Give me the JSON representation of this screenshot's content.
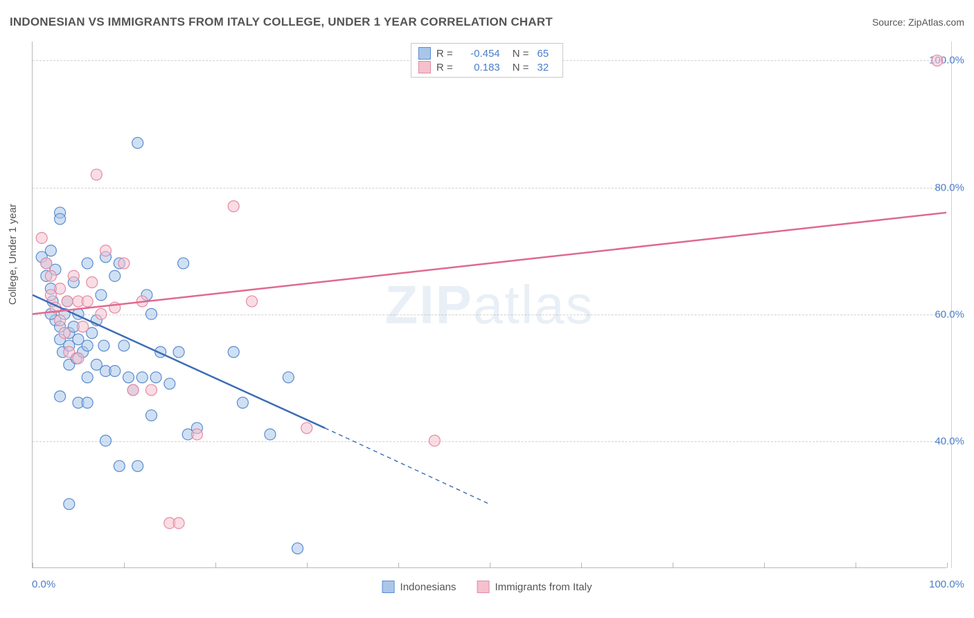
{
  "header": {
    "title": "INDONESIAN VS IMMIGRANTS FROM ITALY COLLEGE, UNDER 1 YEAR CORRELATION CHART",
    "source_label": "Source:",
    "source_value": "ZipAtlas.com"
  },
  "watermark_text": "ZIPatlas",
  "chart": {
    "type": "scatter",
    "yaxis_title": "College, Under 1 year",
    "xlim": [
      0,
      100
    ],
    "ylim": [
      20,
      103
    ],
    "xtick_positions": [
      0,
      10,
      20,
      30,
      40,
      50,
      60,
      70,
      80,
      90,
      100
    ],
    "xtick_labels": {
      "min": "0.0%",
      "max": "100.0%"
    },
    "ytick_positions": [
      40,
      60,
      80,
      100
    ],
    "ytick_labels": [
      "40.0%",
      "60.0%",
      "80.0%",
      "100.0%"
    ],
    "background_color": "#ffffff",
    "grid_color": "#d0d0d0",
    "axis_color": "#b8b8b8",
    "label_color": "#4a7ec9",
    "marker_radius": 8,
    "marker_opacity": 0.55,
    "series": [
      {
        "name": "Indonesians",
        "color_fill": "#a9c6ea",
        "color_stroke": "#5a8bce",
        "r": -0.454,
        "n": 65,
        "trend": {
          "x1": 0,
          "y1": 63,
          "x2_solid": 32,
          "y2_solid": 42,
          "x2_dash": 50,
          "y2_dash": 30,
          "color": "#3d6db5",
          "width": 2.5
        },
        "points": [
          [
            1,
            69
          ],
          [
            1.5,
            66
          ],
          [
            1.5,
            68
          ],
          [
            2,
            64
          ],
          [
            2,
            70
          ],
          [
            2.2,
            62
          ],
          [
            2.5,
            59
          ],
          [
            2.5,
            67
          ],
          [
            3,
            76
          ],
          [
            3,
            75
          ],
          [
            3,
            56
          ],
          [
            3,
            58
          ],
          [
            3.3,
            54
          ],
          [
            3.5,
            60
          ],
          [
            3.8,
            62
          ],
          [
            4,
            57
          ],
          [
            4,
            55
          ],
          [
            4,
            52
          ],
          [
            4.5,
            65
          ],
          [
            4.5,
            58
          ],
          [
            4.8,
            53
          ],
          [
            5,
            56
          ],
          [
            5,
            60
          ],
          [
            5,
            46
          ],
          [
            5.5,
            54
          ],
          [
            6,
            55
          ],
          [
            6,
            50
          ],
          [
            6,
            68
          ],
          [
            6.5,
            57
          ],
          [
            7,
            52
          ],
          [
            7,
            59
          ],
          [
            7.5,
            63
          ],
          [
            7.8,
            55
          ],
          [
            8,
            51
          ],
          [
            8,
            40
          ],
          [
            8,
            69
          ],
          [
            9,
            66
          ],
          [
            9,
            51
          ],
          [
            9.5,
            36
          ],
          [
            9.5,
            68
          ],
          [
            10,
            55
          ],
          [
            10.5,
            50
          ],
          [
            11,
            48
          ],
          [
            11.5,
            87
          ],
          [
            11.5,
            36
          ],
          [
            12,
            50
          ],
          [
            12.5,
            63
          ],
          [
            13,
            60
          ],
          [
            13,
            44
          ],
          [
            13.5,
            50
          ],
          [
            14,
            54
          ],
          [
            15,
            49
          ],
          [
            16,
            54
          ],
          [
            16.5,
            68
          ],
          [
            17,
            41
          ],
          [
            18,
            42
          ],
          [
            22,
            54
          ],
          [
            23,
            46
          ],
          [
            26,
            41
          ],
          [
            28,
            50
          ],
          [
            29,
            23
          ],
          [
            4,
            30
          ],
          [
            6,
            46
          ],
          [
            3,
            47
          ],
          [
            2,
            60
          ]
        ]
      },
      {
        "name": "Immigrants from Italy",
        "color_fill": "#f4c1cd",
        "color_stroke": "#e48aa3",
        "r": 0.183,
        "n": 32,
        "trend": {
          "x1": 0,
          "y1": 60,
          "x2_solid": 100,
          "y2_solid": 76,
          "color": "#e06a8e",
          "width": 2.5
        },
        "points": [
          [
            1,
            72
          ],
          [
            1.5,
            68
          ],
          [
            2,
            66
          ],
          [
            2,
            63
          ],
          [
            2.5,
            61
          ],
          [
            3,
            64
          ],
          [
            3,
            59
          ],
          [
            3.5,
            57
          ],
          [
            3.8,
            62
          ],
          [
            4,
            54
          ],
          [
            4.5,
            66
          ],
          [
            5,
            62
          ],
          [
            5,
            53
          ],
          [
            5.5,
            58
          ],
          [
            6,
            62
          ],
          [
            6.5,
            65
          ],
          [
            7,
            82
          ],
          [
            7.5,
            60
          ],
          [
            8,
            70
          ],
          [
            9,
            61
          ],
          [
            10,
            68
          ],
          [
            11,
            48
          ],
          [
            12,
            62
          ],
          [
            13,
            48
          ],
          [
            15,
            27
          ],
          [
            16,
            27
          ],
          [
            18,
            41
          ],
          [
            22,
            77
          ],
          [
            24,
            62
          ],
          [
            30,
            42
          ],
          [
            44,
            40
          ],
          [
            99,
            100
          ]
        ]
      }
    ]
  },
  "legend_top": {
    "rows": [
      {
        "swatch_fill": "#a9c6ea",
        "swatch_stroke": "#5a8bce",
        "r": "-0.454",
        "n": "65"
      },
      {
        "swatch_fill": "#f4c1cd",
        "swatch_stroke": "#e48aa3",
        "r": "0.183",
        "n": "32"
      }
    ],
    "r_label": "R =",
    "n_label": "N ="
  },
  "legend_bottom": {
    "items": [
      {
        "swatch_fill": "#a9c6ea",
        "swatch_stroke": "#5a8bce",
        "label": "Indonesians"
      },
      {
        "swatch_fill": "#f4c1cd",
        "swatch_stroke": "#e48aa3",
        "label": "Immigrants from Italy"
      }
    ]
  }
}
